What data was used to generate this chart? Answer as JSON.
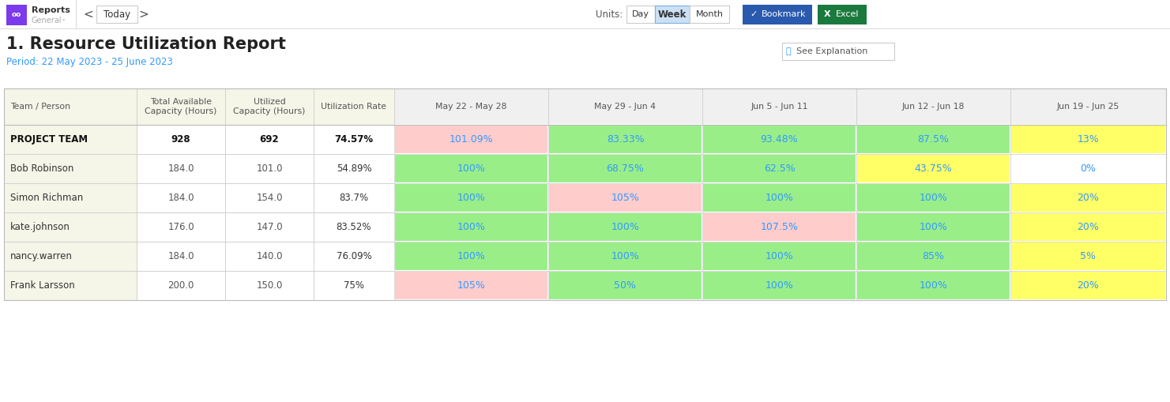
{
  "title": "1. Resource Utilization Report",
  "period": "Period: 22 May 2023 - 25 June 2023",
  "see_explanation": "See Explanation",
  "col_headers": [
    "Team / Person",
    "Total Available\nCapacity (Hours)",
    "Utilized\nCapacity (Hours)",
    "Utilization Rate",
    "May 22 - May 28",
    "May 29 - Jun 4",
    "Jun 5 - Jun 11",
    "Jun 12 - Jun 18",
    "Jun 19 - Jun 25"
  ],
  "col_header_bg": "#f5f5e8",
  "col_header_alt_bg": "#f0f0f0",
  "rows": [
    {
      "name": "PROJECT TEAM",
      "total_avail": "928",
      "utilized": "692",
      "util_rate": "74.57%",
      "bold": true,
      "weeks": [
        "101.09%",
        "83.33%",
        "93.48%",
        "87.5%",
        "13%"
      ],
      "week_colors": [
        "#ffcccc",
        "#99ee88",
        "#99ee88",
        "#99ee88",
        "#ffff66"
      ]
    },
    {
      "name": "Bob Robinson",
      "total_avail": "184.0",
      "utilized": "101.0",
      "util_rate": "54.89%",
      "bold": false,
      "weeks": [
        "100%",
        "68.75%",
        "62.5%",
        "43.75%",
        "0%"
      ],
      "week_colors": [
        "#99ee88",
        "#99ee88",
        "#99ee88",
        "#ffff66",
        "#ffffff"
      ]
    },
    {
      "name": "Simon Richman",
      "total_avail": "184.0",
      "utilized": "154.0",
      "util_rate": "83.7%",
      "bold": false,
      "weeks": [
        "100%",
        "105%",
        "100%",
        "100%",
        "20%"
      ],
      "week_colors": [
        "#99ee88",
        "#ffcccc",
        "#99ee88",
        "#99ee88",
        "#ffff66"
      ]
    },
    {
      "name": "kate.johnson",
      "total_avail": "176.0",
      "utilized": "147.0",
      "util_rate": "83.52%",
      "bold": false,
      "weeks": [
        "100%",
        "100%",
        "107.5%",
        "100%",
        "20%"
      ],
      "week_colors": [
        "#99ee88",
        "#99ee88",
        "#ffcccc",
        "#99ee88",
        "#ffff66"
      ]
    },
    {
      "name": "nancy.warren",
      "total_avail": "184.0",
      "utilized": "140.0",
      "util_rate": "76.09%",
      "bold": false,
      "weeks": [
        "100%",
        "100%",
        "100%",
        "85%",
        "5%"
      ],
      "week_colors": [
        "#99ee88",
        "#99ee88",
        "#99ee88",
        "#99ee88",
        "#ffff66"
      ]
    },
    {
      "name": "Frank Larsson",
      "total_avail": "200.0",
      "utilized": "150.0",
      "util_rate": "75%",
      "bold": false,
      "weeks": [
        "105%",
        "50%",
        "100%",
        "100%",
        "20%"
      ],
      "week_colors": [
        "#ffcccc",
        "#99ee88",
        "#99ee88",
        "#99ee88",
        "#ffff66"
      ]
    }
  ],
  "week_text_color": "#3399ff",
  "fig_bg": "#ffffff",
  "title_color": "#222222",
  "period_color": "#3399ff",
  "navbar_bg": "#ffffff",
  "navbar_border": "#dddddd",
  "nav_icon_color": "#7c3aed",
  "bookmark_btn_color": "#2a5aad",
  "excel_btn_color": "#1a7a3e",
  "week_active_bg": "#cce0f5",
  "week_active_border": "#7ab0e0"
}
